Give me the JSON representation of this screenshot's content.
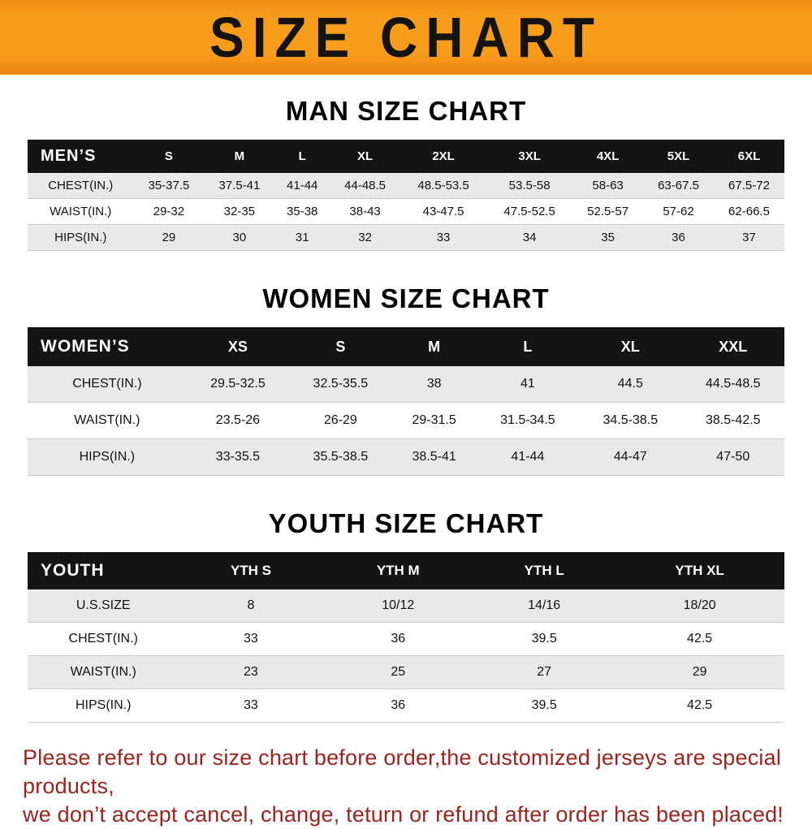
{
  "banner": {
    "title": "SIZE CHART",
    "bg_color": "#F7941D",
    "text_color": "#151310"
  },
  "sections": [
    {
      "title": "MAN SIZE CHART",
      "table": {
        "header": [
          "MEN’S",
          "S",
          "M",
          "L",
          "XL",
          "2XL",
          "3XL",
          "4XL",
          "5XL",
          "6XL"
        ],
        "rows": [
          [
            "CHEST(IN.)",
            "35-37.5",
            "37.5-41",
            "41-44",
            "44-48.5",
            "48.5-53.5",
            "53.5-58",
            "58-63",
            "63-67.5",
            "67.5-72"
          ],
          [
            "WAIST(IN.)",
            "29-32",
            "32-35",
            "35-38",
            "38-43",
            "43-47.5",
            "47.5-52.5",
            "52.5-57",
            "57-62",
            "62-66.5"
          ],
          [
            "HIPS(IN.)",
            "29",
            "30",
            "31",
            "32",
            "33",
            "34",
            "35",
            "36",
            "37"
          ]
        ]
      }
    },
    {
      "title": "WOMEN SIZE CHART",
      "table": {
        "header": [
          "WOMEN’S",
          "XS",
          "S",
          "M",
          "L",
          "XL",
          "XXL"
        ],
        "rows": [
          [
            "CHEST(IN.)",
            "29.5-32.5",
            "32.5-35.5",
            "38",
            "41",
            "44.5",
            "44.5-48.5"
          ],
          [
            "WAIST(IN.)",
            "23.5-26",
            "26-29",
            "29-31.5",
            "31.5-34.5",
            "34.5-38.5",
            "38.5-42.5"
          ],
          [
            "HIPS(IN.)",
            "33-35.5",
            "35.5-38.5",
            "38.5-41",
            "41-44",
            "44-47",
            "47-50"
          ]
        ]
      }
    },
    {
      "title": "YOUTH SIZE CHART",
      "table": {
        "header": [
          "YOUTH",
          "YTH S",
          "YTH M",
          "YTH L",
          "YTH XL"
        ],
        "rows": [
          [
            "U.S.SIZE",
            "8",
            "10/12",
            "14/16",
            "18/20"
          ],
          [
            "CHEST(IN.)",
            "33",
            "36",
            "39.5",
            "42.5"
          ],
          [
            "WAIST(IN.)",
            "23",
            "25",
            "27",
            "29"
          ],
          [
            "HIPS(IN.)",
            "33",
            "36",
            "39.5",
            "42.5"
          ]
        ]
      }
    }
  ],
  "footer": {
    "line1": "Please refer to our size chart before order,the customized jerseys are special products,",
    "line2": "we don’t accept cancel, change, teturn or refund after order has been placed!",
    "text_color": "#9b2420"
  }
}
